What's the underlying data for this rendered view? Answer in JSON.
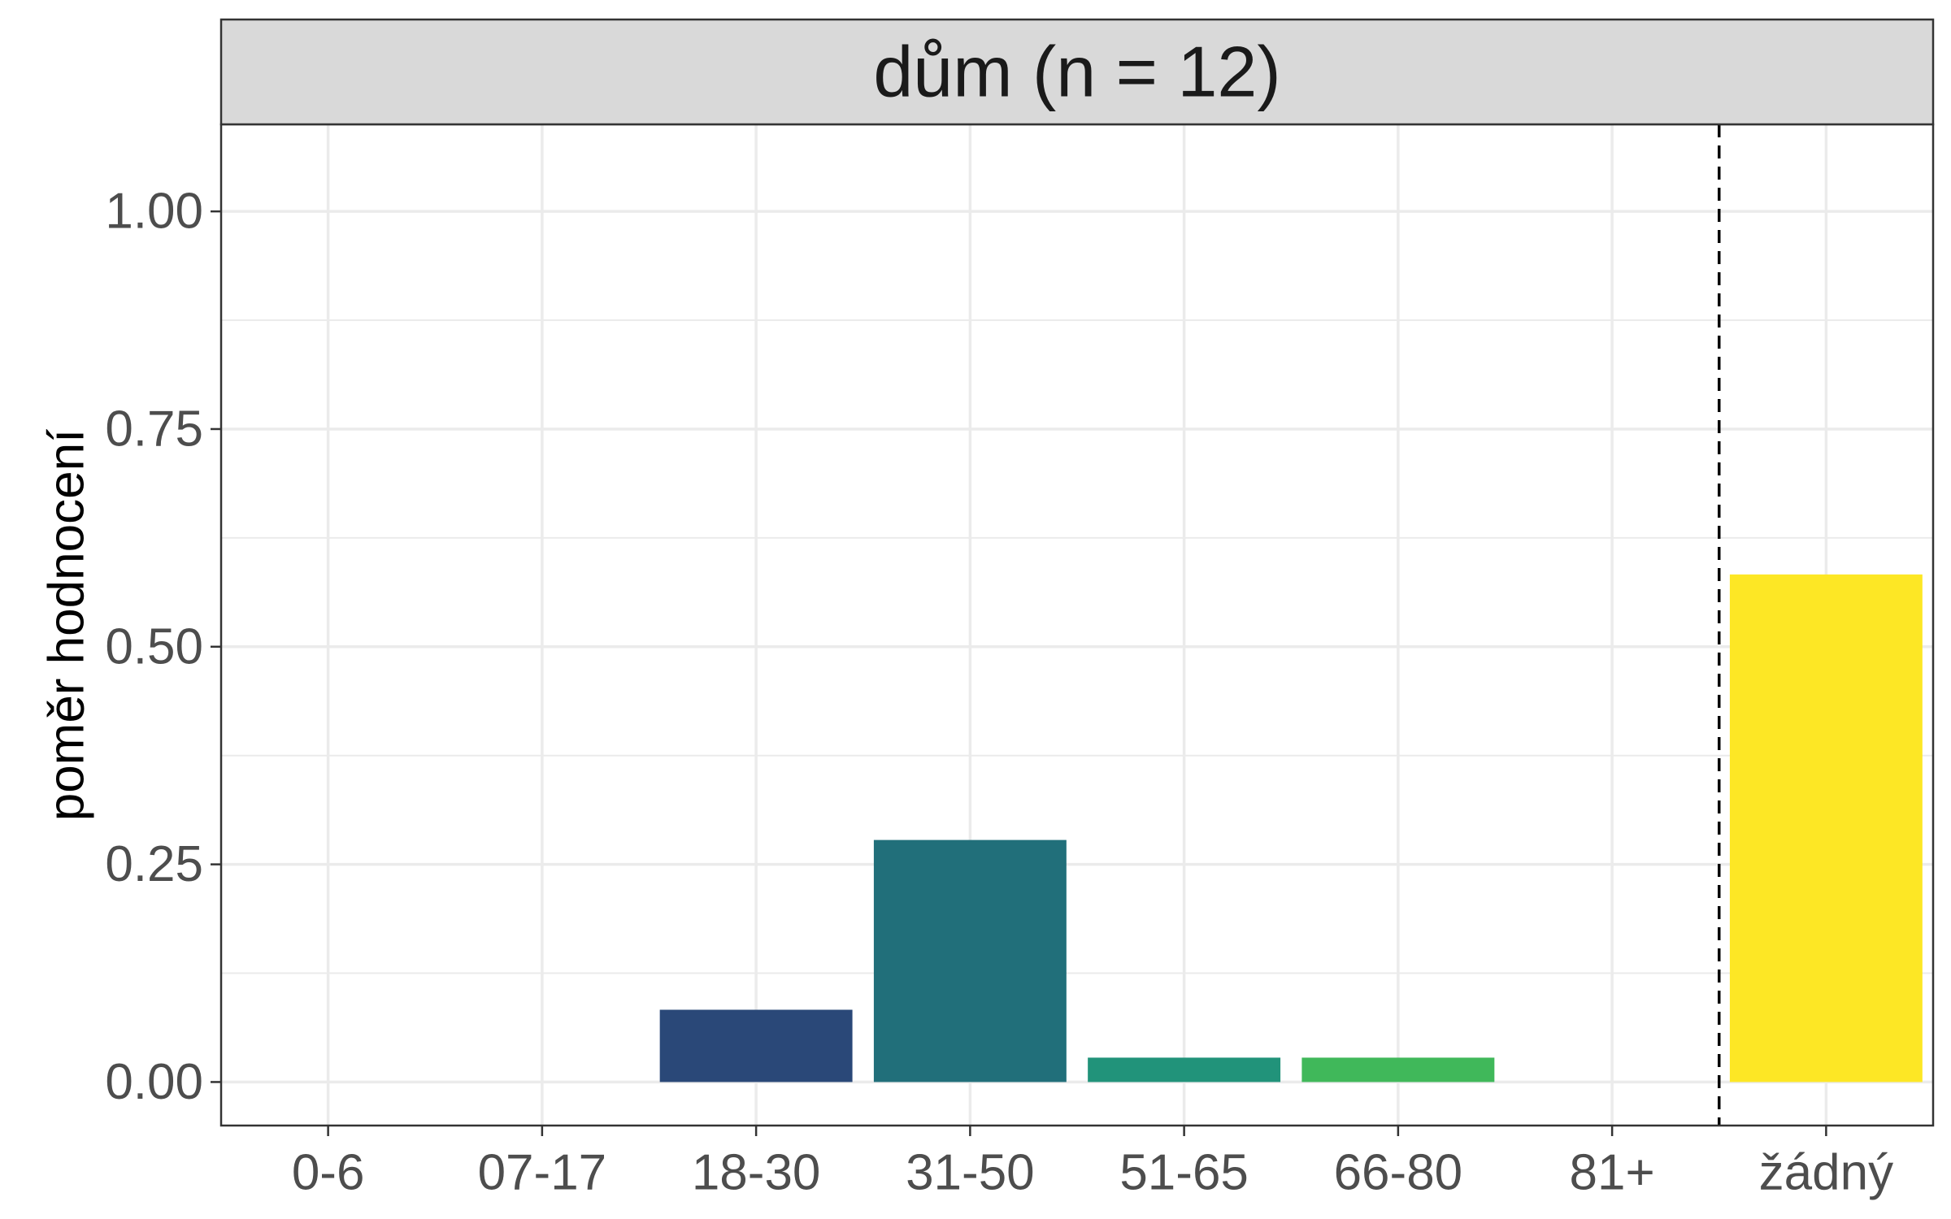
{
  "chart_data": {
    "type": "bar",
    "title": "dům (n = 12)",
    "xlabel": "",
    "ylabel": "poměr hodnocení",
    "categories": [
      "0-6",
      "07-17",
      "18-30",
      "31-50",
      "51-65",
      "66-80",
      "81+",
      "žádný"
    ],
    "values": [
      0,
      0,
      0.083,
      0.278,
      0.028,
      0.028,
      0,
      0.583
    ],
    "colors": [
      "#440154",
      "#46327E",
      "#2A4878",
      "#216F7A",
      "#21937A",
      "#40B85A",
      "#93D741",
      "#FDE725"
    ],
    "ylim": [
      -0.05,
      1.1
    ],
    "yticks": [
      "0.00",
      "0.25",
      "0.50",
      "0.75",
      "1.00"
    ],
    "grid": true,
    "legend": "none",
    "reference_line": {
      "between": [
        "81+",
        "žádný"
      ],
      "style": "dashed",
      "color": "#000000"
    }
  }
}
